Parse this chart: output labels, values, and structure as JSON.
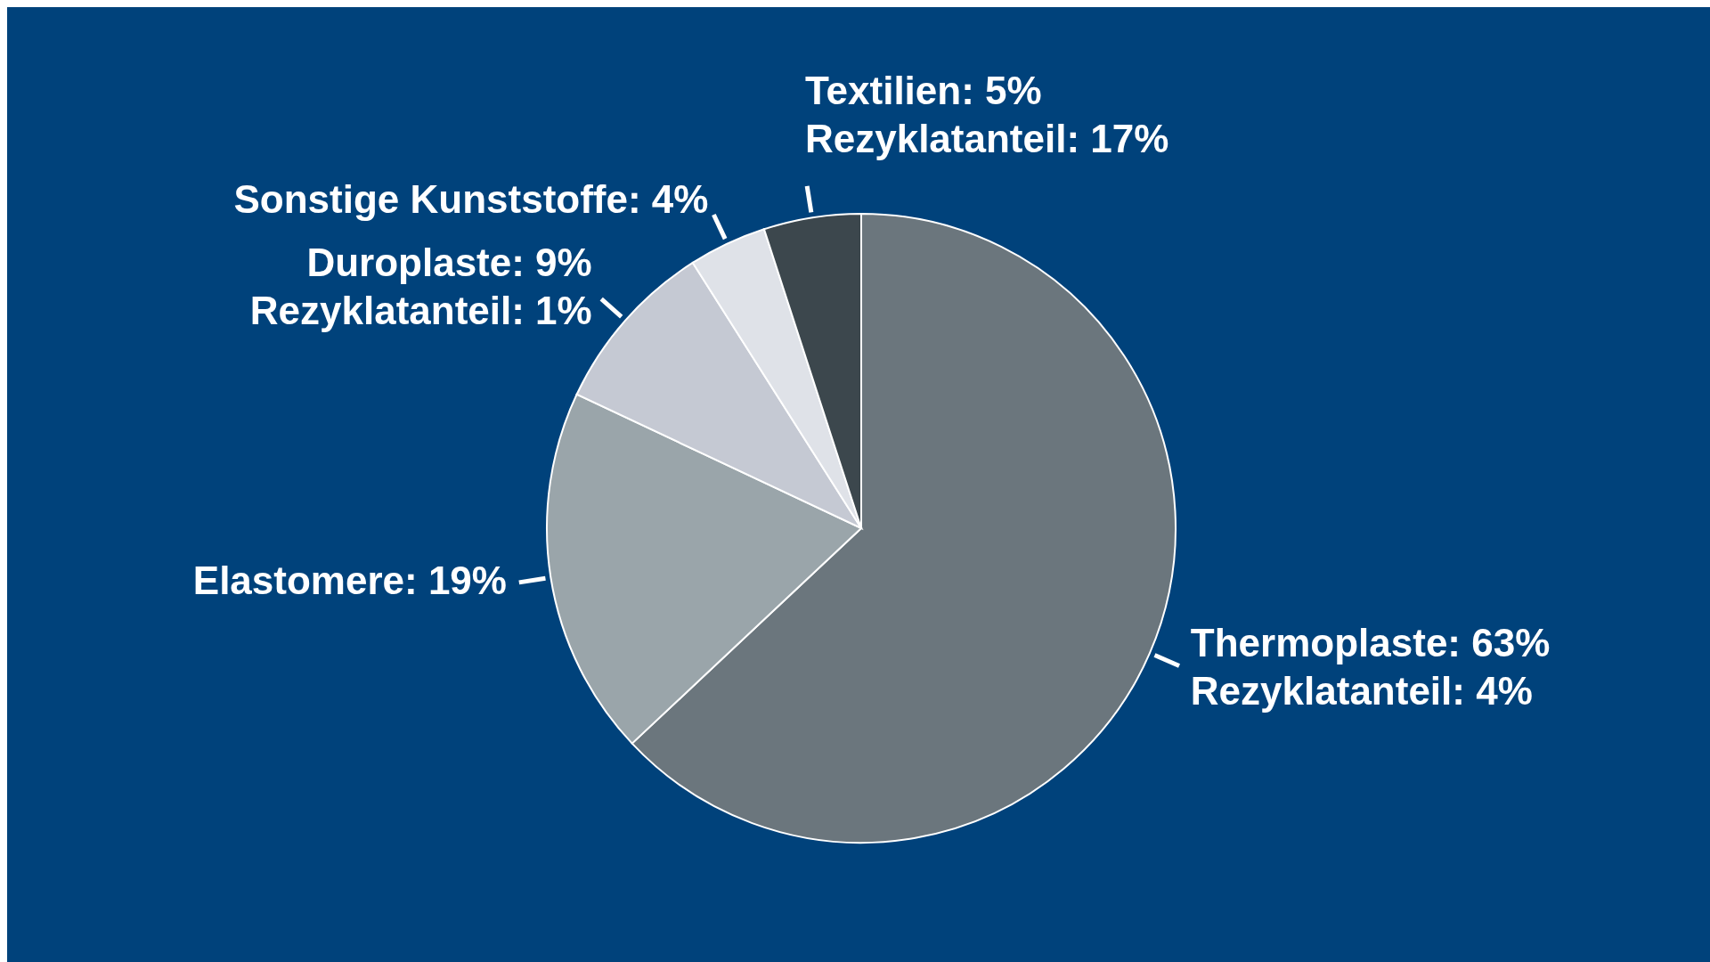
{
  "chart_data": {
    "type": "pie",
    "categories": [
      "Thermoplaste",
      "Elastomere",
      "Duroplaste",
      "Sonstige Kunststoffe",
      "Textilien"
    ],
    "values": [
      63,
      19,
      9,
      4,
      5
    ],
    "colors": [
      "#6b767d",
      "#9aa5aa",
      "#c5c9d3",
      "#dfe2e8",
      "#3c474d"
    ],
    "value_labels": [
      "63%",
      "19%",
      "9%",
      "4%",
      "5%"
    ],
    "annotations": [
      {
        "text": "Rezyklatanteil: 4%",
        "x": "Thermoplaste"
      },
      {
        "text": "Rezyklatanteil: 1%",
        "x": "Duroplaste"
      },
      {
        "text": "Rezyklatanteil: 17%",
        "x": "Textilien"
      }
    ]
  }
}
